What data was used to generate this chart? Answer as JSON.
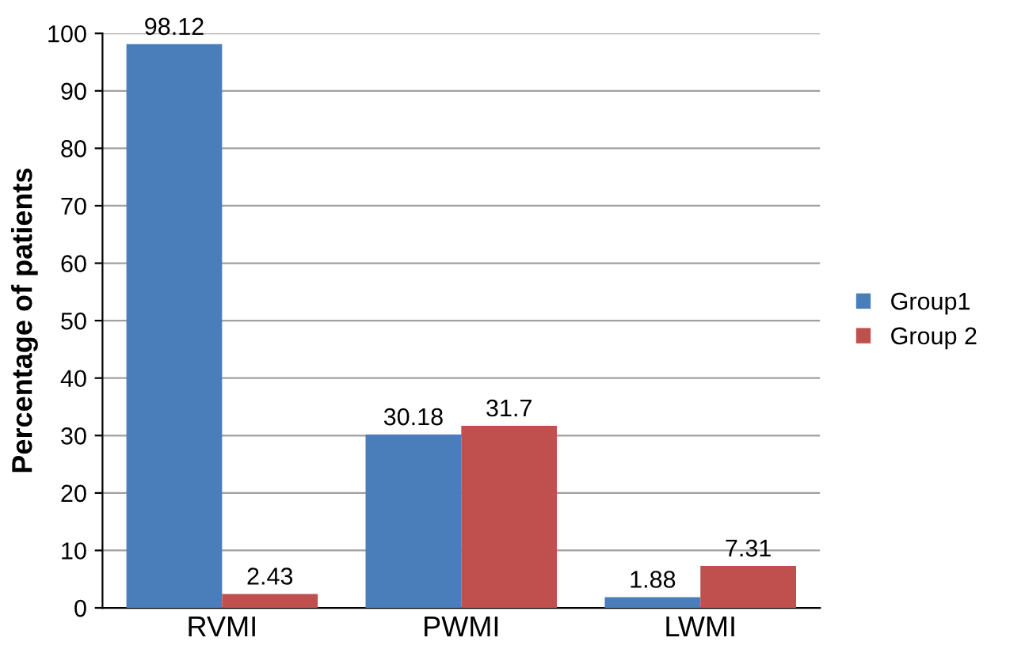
{
  "chart_data": {
    "type": "bar",
    "ylabel": "Percentage of patients",
    "categories": [
      "RVMI",
      "PWMI",
      "LWMI"
    ],
    "series": [
      {
        "name": "Group1",
        "color": "#4a7ebb",
        "values": [
          98.12,
          30.18,
          1.88
        ]
      },
      {
        "name": "Group 2",
        "color": "#c0504d",
        "values": [
          2.43,
          31.7,
          7.31
        ]
      }
    ],
    "ylim": [
      0,
      100
    ],
    "yticks": [
      0,
      10,
      20,
      30,
      40,
      50,
      60,
      70,
      80,
      90,
      100
    ],
    "grid": "y",
    "legend": "right",
    "data_labels": true
  }
}
